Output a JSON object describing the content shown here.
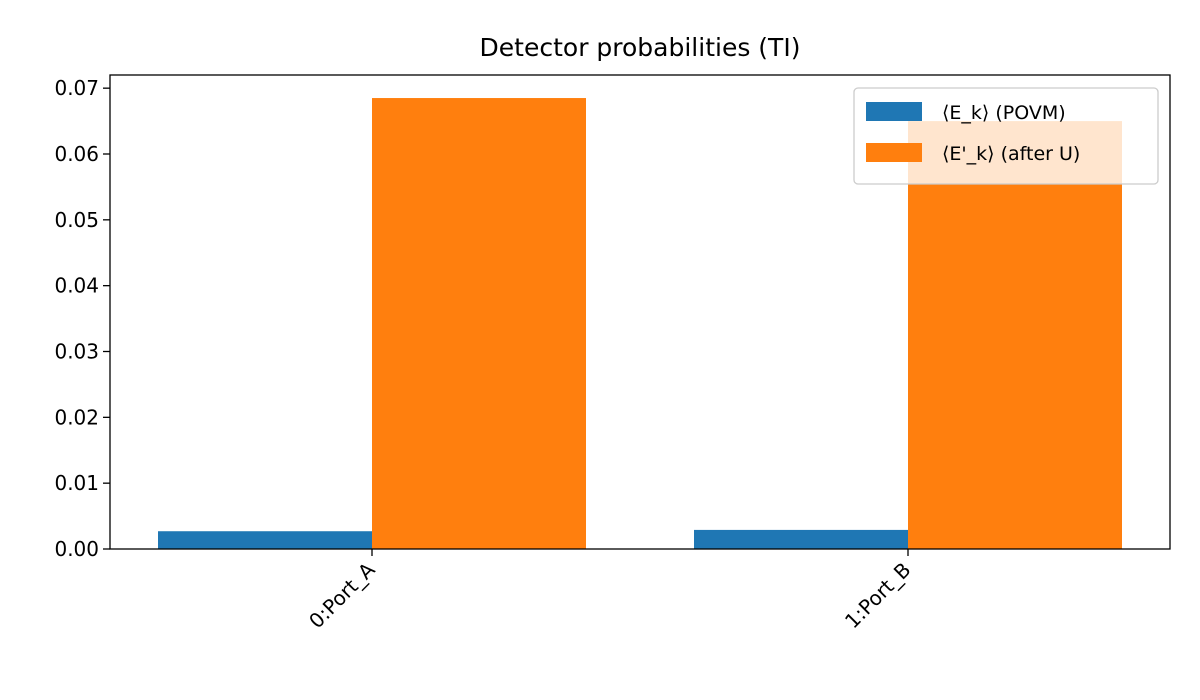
{
  "chart_data": {
    "type": "bar",
    "title": "Detector probabilities (TI)",
    "xlabel": "",
    "ylabel": "",
    "categories": [
      "0:Port_A",
      "1:Port_B"
    ],
    "series": [
      {
        "name": "⟨E_k⟩ (POVM)",
        "color": "#1f77b4",
        "values": [
          0.0027,
          0.0029
        ]
      },
      {
        "name": "⟨E'_k⟩ (after U)",
        "color": "#ff7f0e",
        "values": [
          0.0685,
          0.065
        ]
      }
    ],
    "ylim": [
      0,
      0.072
    ],
    "yticks": [
      0.0,
      0.01,
      0.02,
      0.03,
      0.04,
      0.05,
      0.06,
      0.07
    ],
    "ytick_labels": [
      "0.00",
      "0.01",
      "0.02",
      "0.03",
      "0.04",
      "0.05",
      "0.06",
      "0.07"
    ],
    "grid": false,
    "legend_position": "top-right"
  }
}
